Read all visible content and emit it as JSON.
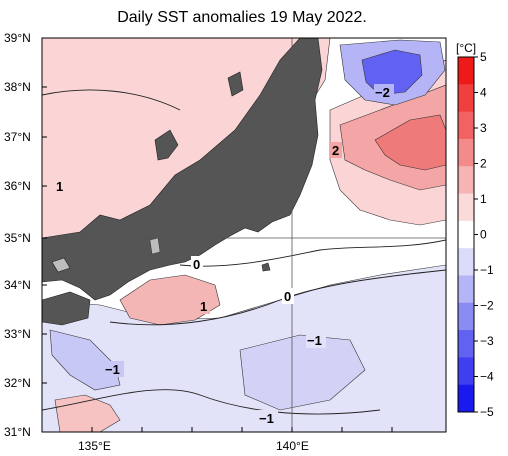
{
  "title": "Daily SST anomalies 19 May 2022.",
  "map": {
    "lat_labels": [
      "39°N",
      "38°N",
      "37°N",
      "36°N",
      "35°N",
      "34°N",
      "33°N",
      "32°N",
      "31°N"
    ],
    "lon_labels": [
      "135°E",
      "140°E"
    ],
    "contour_labels": [
      "1",
      "0",
      "1",
      "0",
      "2",
      "−2",
      "−1",
      "−1",
      "−1"
    ],
    "colors": {
      "land": "#555555",
      "lake": "#bdbdbd",
      "ocean_warm": "#fbd5d5",
      "ocean_cool": "#e6e8f7"
    }
  },
  "colorbar": {
    "unit": "[°C]",
    "ticks": [
      "5",
      "4",
      "3",
      "2",
      "1",
      "0",
      "−1",
      "−2",
      "−3",
      "−4",
      "−5"
    ],
    "min": -5,
    "max": 5,
    "colors": [
      "#1a1aee",
      "#3f3ff0",
      "#6262f2",
      "#8b8bf4",
      "#b4b4f7",
      "#dcdcfa",
      "#ffffff",
      "#fadada",
      "#f7b4b4",
      "#f48b8b",
      "#f26262",
      "#f03f3f",
      "#ee1a1a"
    ]
  }
}
